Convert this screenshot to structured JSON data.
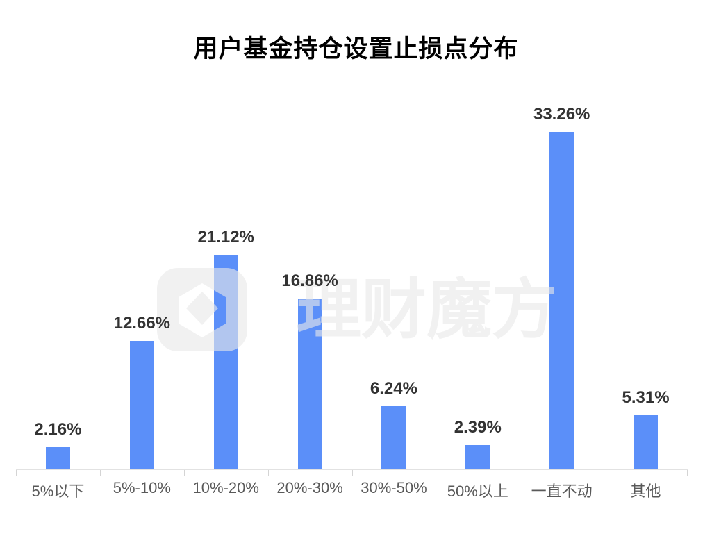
{
  "title": "用户基金持仓设置止损点分布",
  "watermark": {
    "text": "理财魔方",
    "logo": "licaimofang-gem-logo"
  },
  "colors": {
    "bar": "#5B8FF9",
    "value_label": "#333333",
    "axis_label": "#595959",
    "axis_line": "#e2e2e2",
    "watermark": "rgba(233,233,233,0.62)"
  },
  "chart_data": {
    "type": "bar",
    "title": "用户基金持仓设置止损点分布",
    "categories": [
      "5%以下",
      "5%-10%",
      "10%-20%",
      "20%-30%",
      "30%-50%",
      "50%以上",
      "一直不动",
      "其他"
    ],
    "values": [
      2.16,
      12.66,
      21.12,
      16.86,
      6.24,
      2.39,
      33.26,
      5.31
    ],
    "value_labels": [
      "2.16%",
      "12.66%",
      "21.12%",
      "16.86%",
      "6.24%",
      "2.39%",
      "33.26%",
      "5.31%"
    ],
    "xlabel": "",
    "ylabel": "",
    "ylim": [
      0,
      36
    ],
    "grid": false,
    "legend": false,
    "bar_color": "#5B8FF9",
    "data_labels_shown": true,
    "y_axis_shown": false
  }
}
